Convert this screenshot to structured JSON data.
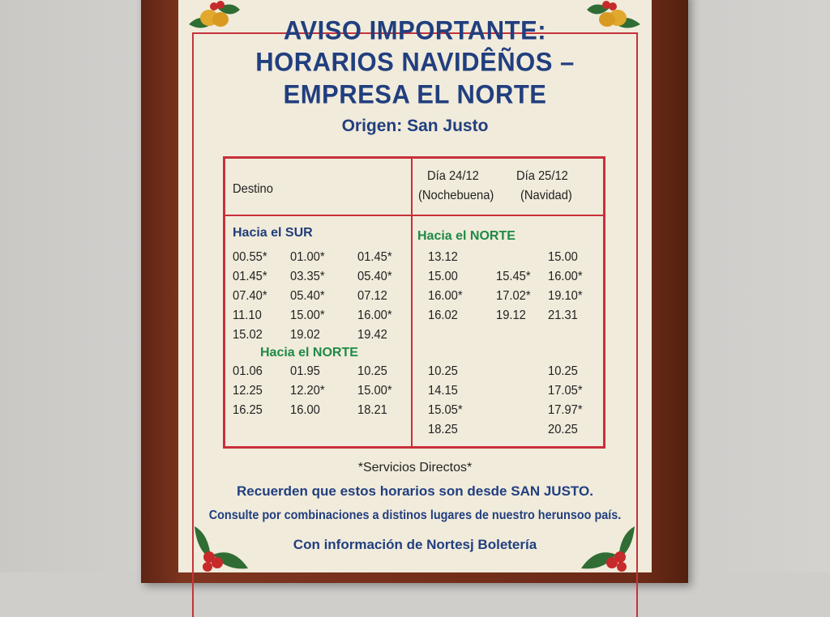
{
  "header": {
    "title_lines": [
      "AVISO IMPORTANTE:",
      "HORARIOS NAVIDÊÑOS –",
      "EMPRESA EL NORTE"
    ],
    "origin": "Origen: San Justo"
  },
  "table": {
    "col_destino": "Destino",
    "col_day1_line1": "Día 24/12",
    "col_day1_line2": "(Nochebuena)",
    "col_day2_line1": "Día 25/12",
    "col_day2_line2": "(Navidad)",
    "left": {
      "section1": "Hacia el SUR",
      "rows1": [
        [
          "00.55*",
          "01.00*",
          "01.45*"
        ],
        [
          "01.45*",
          "03.35*",
          "05.40*"
        ],
        [
          "07.40*",
          "05.40*",
          "07.12"
        ],
        [
          "11.10",
          "15.00*",
          "16.00*"
        ],
        [
          "15.02",
          "19.02",
          "19.42"
        ]
      ],
      "section2": "Hacia el NORTE",
      "rows2": [
        [
          "01.06",
          "01.95",
          "10.25"
        ],
        [
          "12.25",
          "12.20*",
          "15.00*"
        ],
        [
          "16.25",
          "16.00",
          "18.21"
        ]
      ]
    },
    "right": {
      "section1": "Hacia el NORTE",
      "rows1": [
        [
          "13.12",
          "",
          "15.00"
        ],
        [
          "15.00",
          "15.45*",
          "16.00*"
        ],
        [
          "16.00*",
          "17.02*",
          "19.10*"
        ],
        [
          "16.02",
          "19.12",
          "21.31"
        ]
      ],
      "rows2": [
        [
          "10.25",
          "",
          "10.25"
        ],
        [
          "14.15",
          "",
          "17.05*"
        ],
        [
          "15.05*",
          "",
          "17.97*"
        ],
        [
          "18.25",
          "",
          "20.25"
        ]
      ]
    }
  },
  "footer": {
    "note": "*Servicios Directos*",
    "line1": "Recuerden que estos horarios son desde SAN JUSTO.",
    "line2": "Consulte por combinaciones a distinos lugares de nuestro herunsoo país.",
    "line3": "Con información de Nortesj Boletería"
  },
  "colors": {
    "title_blue": "#213f7f",
    "accent_red": "#c8303a",
    "section_green": "#1d8a45",
    "poster_bg": "#f1ebdb",
    "frame_wood": "#6b2a17"
  },
  "icons": [
    "holly-bells-icon",
    "holly-berries-icon"
  ]
}
